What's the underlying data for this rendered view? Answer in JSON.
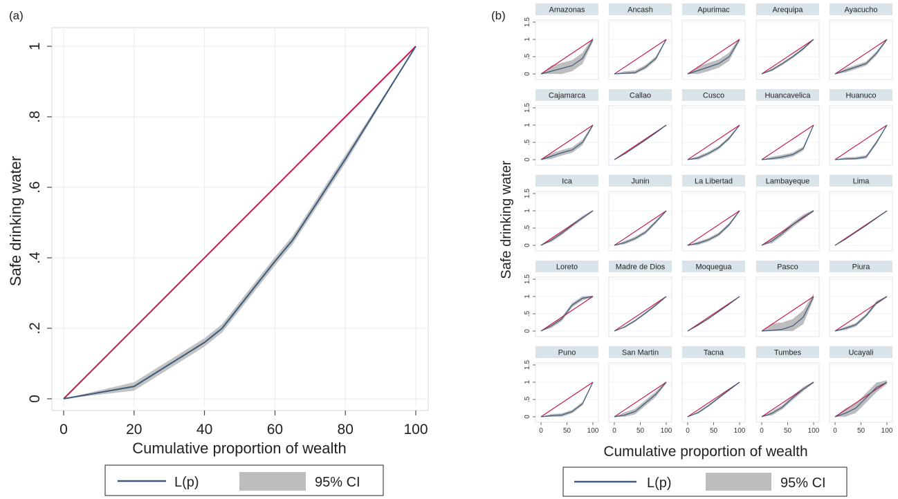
{
  "figure": {
    "panel_a_label": "(a)",
    "panel_b_label": "(b)",
    "legend": {
      "line_label": "L(p)",
      "band_label": "95% CI"
    }
  },
  "colors": {
    "lorenz": "#3b5a7e",
    "equality": "#c8194b",
    "ci": "#bdbdbd",
    "grid": "#e6ecf0",
    "strip": "#d8e3ea"
  },
  "chart_data": [
    {
      "type": "line",
      "panel": "a",
      "ylabel": "Safe drinking water",
      "xlabel": "Cumulative proportion of wealth",
      "xlim": [
        0,
        100
      ],
      "ylim": [
        0,
        1
      ],
      "xticks": [
        "0",
        "20",
        "40",
        "60",
        "80",
        "100"
      ],
      "yticks": [
        "0",
        ".2",
        ".4",
        ".6",
        ".8",
        "1"
      ],
      "grid": true,
      "legend_position": "bottom",
      "series": [
        {
          "name": "L(p)",
          "x": [
            0,
            20,
            40,
            45,
            60,
            65,
            80,
            100
          ],
          "y": [
            0,
            0.035,
            0.16,
            0.2,
            0.39,
            0.45,
            0.68,
            1
          ],
          "ci_halfwidth": 0.012
        }
      ],
      "equality_line": {
        "x": [
          0,
          100
        ],
        "y": [
          0,
          1
        ]
      }
    },
    {
      "type": "line",
      "panel": "b",
      "ylabel": "Safe drinking water",
      "xlabel": "Cumulative proportion of wealth",
      "xlim": [
        0,
        100
      ],
      "ylim": [
        0,
        1.5
      ],
      "xticks": [
        "0",
        "50",
        "100"
      ],
      "yticks": [
        "0",
        ".5",
        "1",
        "1.5"
      ],
      "legend_position": "bottom",
      "panels": [
        {
          "name": "Amazonas",
          "x": [
            0,
            20,
            40,
            60,
            80,
            100
          ],
          "y": [
            0,
            0.08,
            0.16,
            0.24,
            0.45,
            1
          ],
          "ci": 0.16
        },
        {
          "name": "Ancash",
          "x": [
            0,
            20,
            40,
            60,
            80,
            100
          ],
          "y": [
            0,
            0.02,
            0.04,
            0.2,
            0.45,
            1
          ],
          "ci": 0.06
        },
        {
          "name": "Apurimac",
          "x": [
            0,
            20,
            40,
            60,
            80,
            100
          ],
          "y": [
            0,
            0.1,
            0.2,
            0.3,
            0.5,
            1
          ],
          "ci": 0.12
        },
        {
          "name": "Arequipa",
          "x": [
            0,
            20,
            40,
            60,
            80,
            100
          ],
          "y": [
            0,
            0.12,
            0.3,
            0.5,
            0.73,
            1
          ],
          "ci": 0.04
        },
        {
          "name": "Ayacucho",
          "x": [
            0,
            20,
            40,
            60,
            80,
            100
          ],
          "y": [
            0,
            0.1,
            0.2,
            0.3,
            0.6,
            1
          ],
          "ci": 0.06
        },
        {
          "name": "Cajamarca",
          "x": [
            0,
            20,
            40,
            60,
            80,
            100
          ],
          "y": [
            0,
            0.1,
            0.2,
            0.28,
            0.5,
            1
          ],
          "ci": 0.08
        },
        {
          "name": "Callao",
          "x": [
            0,
            20,
            40,
            60,
            80,
            100
          ],
          "y": [
            0,
            0.17,
            0.37,
            0.57,
            0.78,
            1
          ],
          "ci": 0.02
        },
        {
          "name": "Cusco",
          "x": [
            0,
            20,
            40,
            60,
            80,
            100
          ],
          "y": [
            0,
            0.05,
            0.18,
            0.35,
            0.62,
            1
          ],
          "ci": 0.05
        },
        {
          "name": "Huancavelica",
          "x": [
            0,
            20,
            40,
            60,
            80,
            100
          ],
          "y": [
            0,
            0.03,
            0.08,
            0.15,
            0.32,
            1
          ],
          "ci": 0.06
        },
        {
          "name": "Huanuco",
          "x": [
            0,
            20,
            40,
            60,
            80,
            100
          ],
          "y": [
            0,
            0.02,
            0.03,
            0.08,
            0.5,
            1
          ],
          "ci": 0.05
        },
        {
          "name": "Ica",
          "x": [
            0,
            20,
            40,
            60,
            80,
            100
          ],
          "y": [
            0,
            0.15,
            0.35,
            0.58,
            0.8,
            1
          ],
          "ci": 0.05
        },
        {
          "name": "Junin",
          "x": [
            0,
            20,
            40,
            60,
            80,
            100
          ],
          "y": [
            0,
            0.08,
            0.2,
            0.38,
            0.68,
            1
          ],
          "ci": 0.05
        },
        {
          "name": "La Libertad",
          "x": [
            0,
            20,
            40,
            60,
            80,
            100
          ],
          "y": [
            0,
            0.06,
            0.16,
            0.32,
            0.6,
            1
          ],
          "ci": 0.05
        },
        {
          "name": "Lambayeque",
          "x": [
            0,
            20,
            40,
            60,
            80,
            100
          ],
          "y": [
            0,
            0.13,
            0.35,
            0.6,
            0.82,
            1
          ],
          "ci": 0.07
        },
        {
          "name": "Lima",
          "x": [
            0,
            20,
            40,
            60,
            80,
            100
          ],
          "y": [
            0,
            0.18,
            0.38,
            0.58,
            0.79,
            1
          ],
          "ci": 0.015
        },
        {
          "name": "Loreto",
          "x": [
            0,
            20,
            40,
            60,
            80,
            100
          ],
          "y": [
            0,
            0.15,
            0.35,
            0.75,
            0.95,
            1
          ],
          "ci": 0.06
        },
        {
          "name": "Madre de Dios",
          "x": [
            0,
            20,
            40,
            60,
            80,
            100
          ],
          "y": [
            0,
            0.12,
            0.3,
            0.52,
            0.75,
            1
          ],
          "ci": 0.03
        },
        {
          "name": "Moquegua",
          "x": [
            0,
            20,
            40,
            60,
            80,
            100
          ],
          "y": [
            0,
            0.17,
            0.36,
            0.57,
            0.78,
            1
          ],
          "ci": 0.02
        },
        {
          "name": "Pasco",
          "x": [
            0,
            20,
            40,
            60,
            80,
            100
          ],
          "y": [
            0,
            0.02,
            0.05,
            0.15,
            0.4,
            1
          ],
          "ci": 0.2
        },
        {
          "name": "Piura",
          "x": [
            0,
            20,
            40,
            60,
            80,
            100
          ],
          "y": [
            0,
            0.08,
            0.18,
            0.45,
            0.82,
            1
          ],
          "ci": 0.05
        },
        {
          "name": "Puno",
          "x": [
            0,
            20,
            40,
            60,
            80,
            100
          ],
          "y": [
            0,
            0.03,
            0.05,
            0.15,
            0.38,
            1
          ],
          "ci": 0.05
        },
        {
          "name": "San Martin",
          "x": [
            0,
            20,
            40,
            60,
            80,
            100
          ],
          "y": [
            0,
            0.05,
            0.15,
            0.4,
            0.65,
            1
          ],
          "ci": 0.08
        },
        {
          "name": "Tacna",
          "x": [
            0,
            20,
            40,
            60,
            80,
            100
          ],
          "y": [
            0,
            0.12,
            0.32,
            0.55,
            0.78,
            1
          ],
          "ci": 0.03
        },
        {
          "name": "Tumbes",
          "x": [
            0,
            20,
            40,
            60,
            80,
            100
          ],
          "y": [
            0,
            0.1,
            0.28,
            0.55,
            0.8,
            1
          ],
          "ci": 0.06
        },
        {
          "name": "Ucayali",
          "x": [
            0,
            20,
            40,
            60,
            80,
            100
          ],
          "y": [
            0,
            0.1,
            0.25,
            0.55,
            0.85,
            1
          ],
          "ci": 0.14
        }
      ]
    }
  ]
}
